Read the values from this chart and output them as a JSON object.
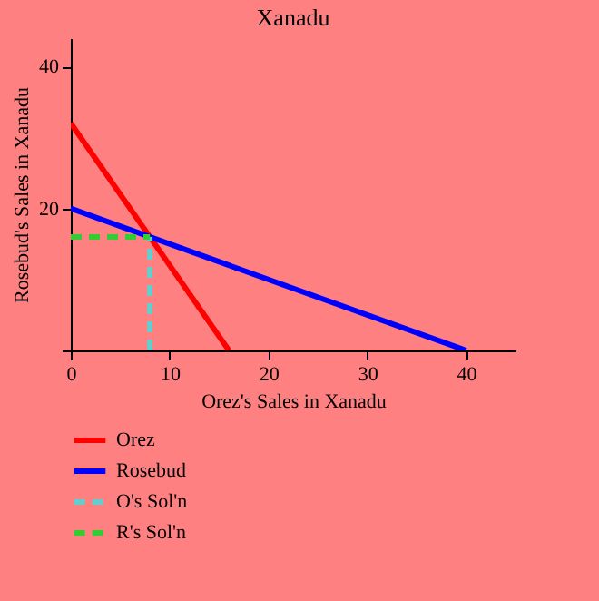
{
  "chart_data": {
    "type": "line",
    "title": "Xanadu",
    "xlabel": "Orez's Sales in Xanadu",
    "ylabel": "Rosebud's Sales in Xanadu",
    "xlim": [
      0,
      45
    ],
    "xticks": [
      0,
      10,
      20,
      30,
      40
    ],
    "ylim": [
      0,
      44
    ],
    "yticks": [
      {
        "value": 0,
        "label": null
      },
      20,
      40
    ],
    "grid": false,
    "legend": "bottom left",
    "series": [
      {
        "name": "Orez",
        "color": "#ff0000",
        "x": [
          0,
          16
        ],
        "values": [
          32,
          0
        ],
        "line_style": "solid"
      },
      {
        "name": "Rosebud",
        "color": "#0000ff",
        "x": [
          0,
          40
        ],
        "values": [
          20,
          0
        ],
        "line_style": "solid"
      },
      {
        "name": "O's Sol'n",
        "color": "#66cccc",
        "x": [
          8,
          8
        ],
        "values": [
          0,
          16
        ],
        "line_style": "dashed"
      },
      {
        "name": "R's Sol'n",
        "color": "#33cc33",
        "x": [
          0,
          8
        ],
        "values": [
          16,
          16
        ],
        "line_style": "dashed"
      }
    ]
  }
}
